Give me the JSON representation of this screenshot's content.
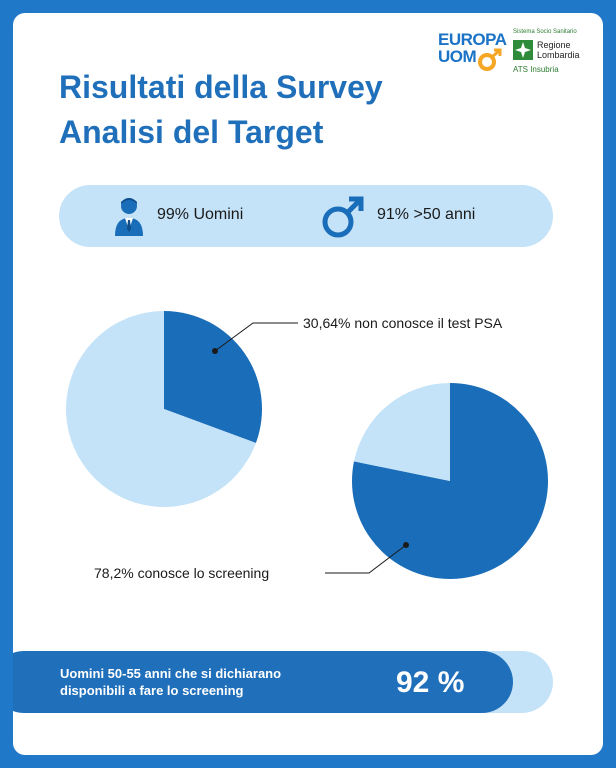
{
  "logos": {
    "europa_line1": "EUROPA",
    "europa_line2": "UOM",
    "region_top": "Sistema Socio Sanitario",
    "region_name_line1": "Regione",
    "region_name_line2": "Lombardia",
    "region_ats": "ATS Insubria"
  },
  "header": {
    "title_line1": "Risultati della Survey",
    "title_line2": "Analisi del Target"
  },
  "stats": [
    {
      "icon": "businessman-icon",
      "text": "99% Uomini"
    },
    {
      "icon": "male-symbol-icon",
      "text": "91% >50 anni"
    }
  ],
  "chart_data": [
    {
      "type": "pie",
      "title": "",
      "slices": [
        {
          "label": "30,64% non conosce il test PSA",
          "value": 30.64,
          "color": "#1a6db8"
        },
        {
          "label": "",
          "value": 69.36,
          "color": "#c4e3f8"
        }
      ]
    },
    {
      "type": "pie",
      "title": "",
      "slices": [
        {
          "label": "78,2% conosce lo screening",
          "value": 78.2,
          "color": "#1a6db8"
        },
        {
          "label": "",
          "value": 21.8,
          "color": "#c4e3f8"
        }
      ]
    }
  ],
  "pie_labels": {
    "top": "30,64% non conosce il test PSA",
    "bottom": "78,2% conosce lo screening"
  },
  "footer": {
    "text_line1": "Uomini 50-55 anni che si dichiarano",
    "text_line2": "disponibili a fare lo screening",
    "value": "92 %"
  },
  "colors": {
    "frame": "#1f78c8",
    "primary": "#1f6fba",
    "light": "#c4e3f8"
  }
}
